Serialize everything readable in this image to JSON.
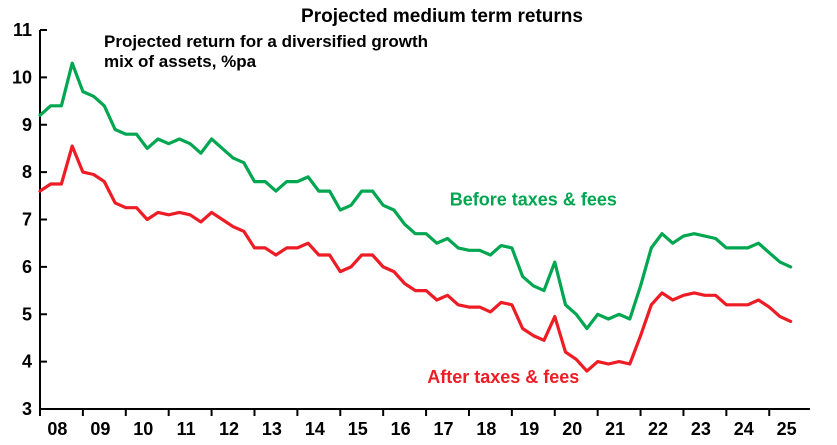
{
  "chart_data": {
    "type": "line",
    "title": "Projected medium term returns",
    "subtitle_lines": [
      "Projected return for a diversified growth",
      "mix of assets, %pa"
    ],
    "xlabel": "",
    "ylabel": "",
    "ylim": [
      3,
      11
    ],
    "yticks": [
      3,
      4,
      5,
      6,
      7,
      8,
      9,
      10,
      11
    ],
    "xlim": [
      2008,
      2025.95
    ],
    "xtick_labels": [
      "08",
      "09",
      "10",
      "11",
      "12",
      "13",
      "14",
      "15",
      "16",
      "17",
      "18",
      "19",
      "20",
      "21",
      "22",
      "23",
      "24",
      "25"
    ],
    "grid": false,
    "colors": {
      "before": "#00A650",
      "after": "#EE1C25"
    },
    "series": [
      {
        "name": "Before taxes & fees",
        "x": [
          2008.0,
          2008.25,
          2008.5,
          2008.75,
          2009.0,
          2009.25,
          2009.5,
          2009.75,
          2010.0,
          2010.25,
          2010.5,
          2010.75,
          2011.0,
          2011.25,
          2011.5,
          2011.75,
          2012.0,
          2012.25,
          2012.5,
          2012.75,
          2013.0,
          2013.25,
          2013.5,
          2013.75,
          2014.0,
          2014.25,
          2014.5,
          2014.75,
          2015.0,
          2015.25,
          2015.5,
          2015.75,
          2016.0,
          2016.25,
          2016.5,
          2016.75,
          2017.0,
          2017.25,
          2017.5,
          2017.75,
          2018.0,
          2018.25,
          2018.5,
          2018.75,
          2019.0,
          2019.25,
          2019.5,
          2019.75,
          2020.0,
          2020.25,
          2020.5,
          2020.75,
          2021.0,
          2021.25,
          2021.5,
          2021.75,
          2022.0,
          2022.25,
          2022.5,
          2022.75,
          2023.0,
          2023.25,
          2023.5,
          2023.75,
          2024.0,
          2024.25,
          2024.5,
          2024.75,
          2025.0,
          2025.25,
          2025.5
        ],
        "values": [
          9.2,
          9.4,
          9.4,
          10.3,
          9.7,
          9.6,
          9.4,
          8.9,
          8.8,
          8.8,
          8.5,
          8.7,
          8.6,
          8.7,
          8.6,
          8.4,
          8.7,
          8.5,
          8.3,
          8.2,
          7.8,
          7.8,
          7.6,
          7.8,
          7.8,
          7.9,
          7.6,
          7.6,
          7.2,
          7.3,
          7.6,
          7.6,
          7.3,
          7.2,
          6.9,
          6.7,
          6.7,
          6.5,
          6.6,
          6.4,
          6.35,
          6.35,
          6.25,
          6.45,
          6.4,
          5.8,
          5.6,
          5.5,
          6.1,
          5.2,
          5.0,
          4.7,
          5.0,
          4.9,
          5.0,
          4.9,
          5.6,
          6.4,
          6.7,
          6.5,
          6.65,
          6.7,
          6.65,
          6.6,
          6.4,
          6.4,
          6.4,
          6.5,
          6.3,
          6.1,
          6.0
        ]
      },
      {
        "name": "After taxes & fees",
        "x": [
          2008.0,
          2008.25,
          2008.5,
          2008.75,
          2009.0,
          2009.25,
          2009.5,
          2009.75,
          2010.0,
          2010.25,
          2010.5,
          2010.75,
          2011.0,
          2011.25,
          2011.5,
          2011.75,
          2012.0,
          2012.25,
          2012.5,
          2012.75,
          2013.0,
          2013.25,
          2013.5,
          2013.75,
          2014.0,
          2014.25,
          2014.5,
          2014.75,
          2015.0,
          2015.25,
          2015.5,
          2015.75,
          2016.0,
          2016.25,
          2016.5,
          2016.75,
          2017.0,
          2017.25,
          2017.5,
          2017.75,
          2018.0,
          2018.25,
          2018.5,
          2018.75,
          2019.0,
          2019.25,
          2019.5,
          2019.75,
          2020.0,
          2020.25,
          2020.5,
          2020.75,
          2021.0,
          2021.25,
          2021.5,
          2021.75,
          2022.0,
          2022.25,
          2022.5,
          2022.75,
          2023.0,
          2023.25,
          2023.5,
          2023.75,
          2024.0,
          2024.25,
          2024.5,
          2024.75,
          2025.0,
          2025.25,
          2025.5
        ],
        "values": [
          7.6,
          7.75,
          7.75,
          8.55,
          8.0,
          7.95,
          7.8,
          7.35,
          7.25,
          7.25,
          7.0,
          7.15,
          7.1,
          7.15,
          7.1,
          6.95,
          7.15,
          7.0,
          6.85,
          6.75,
          6.4,
          6.4,
          6.25,
          6.4,
          6.4,
          6.5,
          6.25,
          6.25,
          5.9,
          6.0,
          6.25,
          6.25,
          6.0,
          5.9,
          5.65,
          5.5,
          5.5,
          5.3,
          5.4,
          5.2,
          5.15,
          5.15,
          5.05,
          5.25,
          5.2,
          4.7,
          4.55,
          4.45,
          4.95,
          4.2,
          4.05,
          3.8,
          4.0,
          3.95,
          4.0,
          3.95,
          4.55,
          5.2,
          5.45,
          5.3,
          5.4,
          5.45,
          5.4,
          5.4,
          5.2,
          5.2,
          5.2,
          5.3,
          5.15,
          4.95,
          4.85
        ]
      }
    ],
    "annotations": [
      {
        "series": 0,
        "text": "Before taxes & fees",
        "x": 2019.5,
        "y": 7.3
      },
      {
        "series": 1,
        "text": "After taxes & fees",
        "x": 2018.8,
        "y": 3.55
      }
    ]
  }
}
